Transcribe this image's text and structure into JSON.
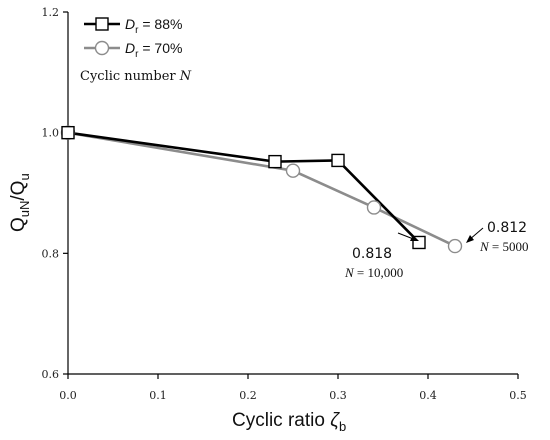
{
  "chart_data": {
    "type": "line",
    "xlabel": "Cyclic ratio ",
    "xlabel_symbol": "ζ",
    "xlabel_sub": "b",
    "ylabel_main": "Q",
    "ylabel_sub1": "uN",
    "ylabel_slash": "/Q",
    "ylabel_sub2": "u",
    "xlim": [
      0.0,
      0.5
    ],
    "ylim": [
      0.6,
      1.2
    ],
    "xticks": [
      0.0,
      0.1,
      0.2,
      0.3,
      0.4,
      0.5
    ],
    "xtick_labels": [
      "0.0",
      "0.1",
      "0.2",
      "0.3",
      "0.4",
      "0.5"
    ],
    "yticks": [
      0.6,
      0.8,
      1.0,
      1.2
    ],
    "ytick_labels": [
      "0.6",
      "0.8",
      "1.0",
      "1.2"
    ],
    "grid": false,
    "legend_position": "top-left",
    "note": "Cyclic number ",
    "note_symbol": "N",
    "series": [
      {
        "name_prefix": "D",
        "name_sub": "r",
        "name_suffix": " = 88%",
        "marker": "square",
        "color": "#000000",
        "x": [
          0.0,
          0.23,
          0.3,
          0.39
        ],
        "y": [
          1.0,
          0.952,
          0.954,
          0.818
        ]
      },
      {
        "name_prefix": "D",
        "name_sub": "r",
        "name_suffix": " = 70%",
        "marker": "circle",
        "color": "#8c8c8c",
        "x": [
          0.0,
          0.25,
          0.34,
          0.43
        ],
        "y": [
          1.0,
          0.937,
          0.876,
          0.812
        ]
      }
    ],
    "annotations": [
      {
        "value": "0.818",
        "n_symbol": "N",
        "n_text": " = 10,000",
        "series": 0
      },
      {
        "value": "0.812",
        "n_symbol": "N",
        "n_text": " = 5000",
        "series": 1
      }
    ]
  }
}
